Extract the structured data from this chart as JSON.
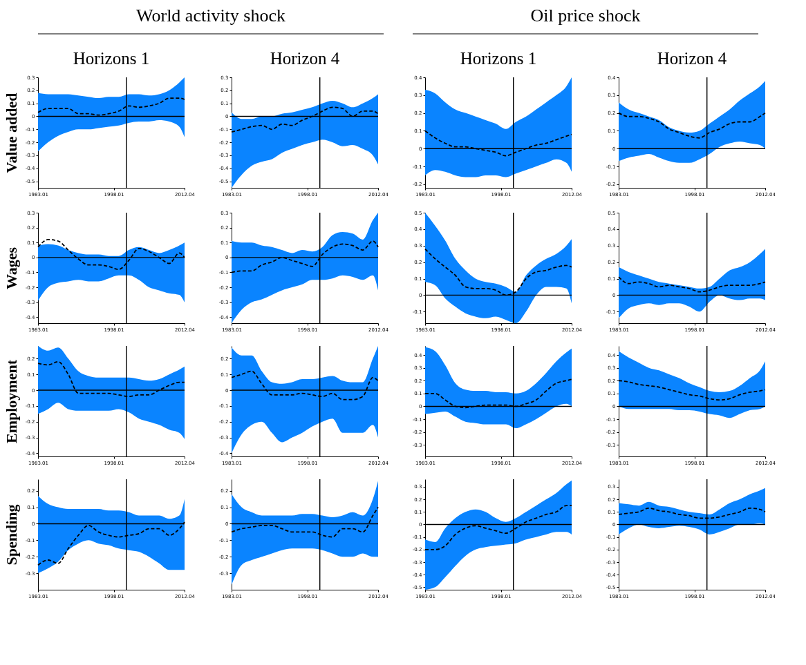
{
  "chart_data": [
    {
      "type": "line",
      "title": "Horizons 1",
      "ylabel": "Value added",
      "annotations": [
        "World activity shock"
      ],
      "x": [
        1983.01,
        1985,
        1987,
        1989,
        1991,
        1993,
        1995,
        1997,
        1999,
        2001,
        2003,
        2005,
        2007,
        2009,
        2011,
        2012.04
      ],
      "xlim": [
        1983.01,
        2012.04
      ],
      "xticks": [
        1983.01,
        1998.01,
        2012.04
      ],
      "ylim": [
        -0.55,
        0.3
      ],
      "yticks": [
        -0.5,
        -0.4,
        -0.3,
        -0.2,
        -0.1,
        0,
        0.1,
        0.2,
        0.3
      ],
      "ref_lines": [
        {
          "axis": "y",
          "value": 0
        },
        {
          "axis": "x",
          "value": 2000.5
        }
      ],
      "series": [
        {
          "color": "#000000",
          "line_style": "dashed",
          "values": [
            0.03,
            0.06,
            0.06,
            0.06,
            0.02,
            0.02,
            0.01,
            0.02,
            0.04,
            0.08,
            0.07,
            0.08,
            0.1,
            0.14,
            0.14,
            0.13
          ],
          "lower": [
            -0.27,
            -0.2,
            -0.15,
            -0.12,
            -0.1,
            -0.1,
            -0.09,
            -0.08,
            -0.07,
            -0.05,
            -0.04,
            -0.04,
            -0.03,
            -0.04,
            -0.08,
            -0.16
          ],
          "upper": [
            0.18,
            0.17,
            0.17,
            0.17,
            0.16,
            0.15,
            0.14,
            0.15,
            0.15,
            0.17,
            0.17,
            0.16,
            0.17,
            0.2,
            0.26,
            0.3
          ]
        }
      ]
    },
    {
      "type": "line",
      "title": "Horizon 4",
      "x": [
        1983.01,
        1985,
        1987,
        1989,
        1991,
        1993,
        1995,
        1997,
        1999,
        2001,
        2003,
        2005,
        2007,
        2009,
        2011,
        2012.04
      ],
      "xlim": [
        1983.01,
        2012.04
      ],
      "xticks": [
        1983.01,
        1998.01,
        2012.04
      ],
      "ylim": [
        -0.55,
        0.3
      ],
      "yticks": [
        -0.5,
        -0.4,
        -0.3,
        -0.2,
        -0.1,
        0,
        0.1,
        0.2,
        0.3
      ],
      "ref_lines": [
        {
          "axis": "y",
          "value": 0
        },
        {
          "axis": "x",
          "value": 2000.5
        }
      ],
      "series": [
        {
          "color": "#000000",
          "line_style": "dashed",
          "values": [
            -0.12,
            -0.1,
            -0.08,
            -0.07,
            -0.1,
            -0.06,
            -0.07,
            -0.03,
            0.0,
            0.04,
            0.07,
            0.06,
            0.0,
            0.04,
            0.04,
            0.02
          ],
          "lower": [
            -0.55,
            -0.45,
            -0.38,
            -0.35,
            -0.33,
            -0.28,
            -0.25,
            -0.22,
            -0.2,
            -0.18,
            -0.2,
            -0.23,
            -0.22,
            -0.25,
            -0.3,
            -0.37
          ],
          "upper": [
            0.03,
            -0.02,
            -0.02,
            0.0,
            0.0,
            0.02,
            0.03,
            0.05,
            0.07,
            0.1,
            0.12,
            0.1,
            0.07,
            0.1,
            0.14,
            0.17
          ]
        }
      ]
    },
    {
      "type": "line",
      "title": "Horizons 1",
      "annotations": [
        "Oil price shock"
      ],
      "x": [
        1983.01,
        1985,
        1987,
        1989,
        1991,
        1993,
        1995,
        1997,
        1999,
        2001,
        2003,
        2005,
        2007,
        2009,
        2011,
        2012.04
      ],
      "xlim": [
        1983.01,
        2012.04
      ],
      "xticks": [
        1983.01,
        1998.01,
        2012.04
      ],
      "ylim": [
        -0.22,
        0.4
      ],
      "yticks": [
        -0.2,
        -0.1,
        0,
        0.1,
        0.2,
        0.3,
        0.4
      ],
      "ref_lines": [
        {
          "axis": "y",
          "value": 0
        },
        {
          "axis": "x",
          "value": 2000.5
        }
      ],
      "series": [
        {
          "color": "#000000",
          "line_style": "dashed",
          "values": [
            0.1,
            0.06,
            0.03,
            0.01,
            0.01,
            0.0,
            -0.01,
            -0.02,
            -0.04,
            -0.02,
            0.0,
            0.02,
            0.03,
            0.05,
            0.07,
            0.08
          ],
          "lower": [
            -0.15,
            -0.12,
            -0.13,
            -0.15,
            -0.16,
            -0.16,
            -0.15,
            -0.15,
            -0.16,
            -0.14,
            -0.12,
            -0.1,
            -0.08,
            -0.06,
            -0.08,
            -0.13
          ],
          "upper": [
            0.33,
            0.31,
            0.26,
            0.22,
            0.2,
            0.18,
            0.16,
            0.14,
            0.11,
            0.15,
            0.18,
            0.22,
            0.26,
            0.3,
            0.35,
            0.4
          ]
        }
      ]
    },
    {
      "type": "line",
      "title": "Horizon 4",
      "x": [
        1983.01,
        1985,
        1987,
        1989,
        1991,
        1993,
        1995,
        1997,
        1999,
        2001,
        2003,
        2005,
        2007,
        2009,
        2011,
        2012.04
      ],
      "xlim": [
        1983.01,
        2012.04
      ],
      "xticks": [
        1983.01,
        1998.01,
        2012.04
      ],
      "ylim": [
        -0.22,
        0.4
      ],
      "yticks": [
        -0.2,
        -0.1,
        0,
        0.1,
        0.2,
        0.3,
        0.4
      ],
      "ref_lines": [
        {
          "axis": "y",
          "value": 0
        },
        {
          "axis": "x",
          "value": 2000.5
        }
      ],
      "series": [
        {
          "color": "#000000",
          "line_style": "dashed",
          "values": [
            0.2,
            0.18,
            0.18,
            0.17,
            0.15,
            0.11,
            0.09,
            0.07,
            0.06,
            0.09,
            0.11,
            0.14,
            0.15,
            0.15,
            0.18,
            0.2
          ],
          "lower": [
            -0.07,
            -0.05,
            -0.04,
            -0.03,
            -0.05,
            -0.07,
            -0.08,
            -0.08,
            -0.06,
            -0.03,
            0.01,
            0.03,
            0.04,
            0.03,
            0.02,
            0.0
          ],
          "upper": [
            0.26,
            0.22,
            0.2,
            0.18,
            0.16,
            0.12,
            0.1,
            0.09,
            0.1,
            0.14,
            0.18,
            0.22,
            0.27,
            0.31,
            0.35,
            0.38
          ]
        }
      ]
    },
    {
      "type": "line",
      "ylabel": "Wages",
      "x": [
        1983.01,
        1985,
        1987,
        1989,
        1991,
        1993,
        1995,
        1997,
        1999,
        2001,
        2003,
        2005,
        2007,
        2009,
        2011,
        2012.04
      ],
      "xlim": [
        1983.01,
        2012.04
      ],
      "xticks": [
        1983.01,
        1998.01,
        2012.04
      ],
      "ylim": [
        -0.44,
        0.3
      ],
      "yticks": [
        -0.4,
        -0.3,
        -0.2,
        -0.1,
        0,
        0.1,
        0.2,
        0.3
      ],
      "ref_lines": [
        {
          "axis": "y",
          "value": 0
        },
        {
          "axis": "x",
          "value": 2000.5
        }
      ],
      "series": [
        {
          "color": "#000000",
          "line_style": "dashed",
          "values": [
            0.07,
            0.12,
            0.11,
            0.05,
            -0.01,
            -0.05,
            -0.05,
            -0.06,
            -0.08,
            -0.02,
            0.06,
            0.04,
            0.0,
            -0.04,
            0.03,
            0.0
          ],
          "lower": [
            -0.29,
            -0.2,
            -0.17,
            -0.16,
            -0.15,
            -0.16,
            -0.16,
            -0.14,
            -0.12,
            -0.12,
            -0.15,
            -0.2,
            -0.22,
            -0.24,
            -0.25,
            -0.3
          ],
          "upper": [
            0.08,
            0.09,
            0.08,
            0.05,
            0.03,
            0.02,
            0.02,
            0.01,
            0.01,
            0.05,
            0.07,
            0.05,
            0.03,
            0.05,
            0.08,
            0.1
          ]
        }
      ]
    },
    {
      "type": "line",
      "x": [
        1983.01,
        1985,
        1987,
        1989,
        1991,
        1993,
        1995,
        1997,
        1999,
        2001,
        2003,
        2005,
        2007,
        2009,
        2011,
        2012.04
      ],
      "xlim": [
        1983.01,
        2012.04
      ],
      "xticks": [
        1983.01,
        1998.01,
        2012.04
      ],
      "ylim": [
        -0.44,
        0.3
      ],
      "yticks": [
        -0.4,
        -0.3,
        -0.2,
        -0.1,
        0,
        0.1,
        0.2,
        0.3
      ],
      "ref_lines": [
        {
          "axis": "y",
          "value": 0
        },
        {
          "axis": "x",
          "value": 2000.5
        }
      ],
      "series": [
        {
          "color": "#000000",
          "line_style": "dashed",
          "values": [
            -0.1,
            -0.09,
            -0.09,
            -0.05,
            -0.03,
            0.0,
            -0.02,
            -0.04,
            -0.06,
            0.02,
            0.07,
            0.09,
            0.08,
            0.05,
            0.11,
            0.07
          ],
          "lower": [
            -0.44,
            -0.35,
            -0.3,
            -0.28,
            -0.25,
            -0.22,
            -0.2,
            -0.18,
            -0.15,
            -0.15,
            -0.14,
            -0.12,
            -0.13,
            -0.15,
            -0.12,
            -0.22
          ],
          "upper": [
            0.11,
            0.1,
            0.1,
            0.08,
            0.07,
            0.05,
            0.03,
            0.05,
            0.04,
            0.07,
            0.15,
            0.17,
            0.16,
            0.12,
            0.25,
            0.3
          ]
        }
      ]
    },
    {
      "type": "line",
      "x": [
        1983.01,
        1985,
        1987,
        1989,
        1991,
        1993,
        1995,
        1997,
        1999,
        2001,
        2003,
        2005,
        2007,
        2009,
        2011,
        2012.04
      ],
      "xlim": [
        1983.01,
        2012.04
      ],
      "xticks": [
        1983.01,
        1998.01,
        2012.04
      ],
      "ylim": [
        -0.17,
        0.5
      ],
      "yticks": [
        -0.1,
        0,
        0.1,
        0.2,
        0.3,
        0.4,
        0.5
      ],
      "ref_lines": [
        {
          "axis": "y",
          "value": 0
        },
        {
          "axis": "x",
          "value": 2000.5
        }
      ],
      "series": [
        {
          "color": "#000000",
          "line_style": "dashed",
          "values": [
            0.28,
            0.22,
            0.17,
            0.12,
            0.05,
            0.04,
            0.04,
            0.03,
            0.0,
            0.02,
            0.1,
            0.14,
            0.15,
            0.17,
            0.18,
            0.17
          ],
          "lower": [
            0.08,
            0.06,
            -0.02,
            -0.07,
            -0.11,
            -0.13,
            -0.14,
            -0.13,
            -0.15,
            -0.17,
            -0.1,
            0.0,
            0.05,
            0.05,
            0.04,
            -0.05
          ],
          "upper": [
            0.5,
            0.42,
            0.33,
            0.22,
            0.15,
            0.1,
            0.08,
            0.07,
            0.05,
            0.02,
            0.12,
            0.18,
            0.22,
            0.25,
            0.3,
            0.34
          ]
        }
      ]
    },
    {
      "type": "line",
      "x": [
        1983.01,
        1985,
        1987,
        1989,
        1991,
        1993,
        1995,
        1997,
        1999,
        2001,
        2003,
        2005,
        2007,
        2009,
        2011,
        2012.04
      ],
      "xlim": [
        1983.01,
        2012.04
      ],
      "xticks": [
        1983.01,
        1998.01,
        2012.04
      ],
      "ylim": [
        -0.17,
        0.5
      ],
      "yticks": [
        -0.1,
        0,
        0.1,
        0.2,
        0.3,
        0.4,
        0.5
      ],
      "ref_lines": [
        {
          "axis": "y",
          "value": 0
        },
        {
          "axis": "x",
          "value": 2000.5
        }
      ],
      "series": [
        {
          "color": "#000000",
          "line_style": "dashed",
          "values": [
            0.11,
            0.07,
            0.08,
            0.07,
            0.05,
            0.06,
            0.05,
            0.04,
            0.02,
            0.03,
            0.05,
            0.06,
            0.06,
            0.06,
            0.07,
            0.08
          ],
          "lower": [
            -0.14,
            -0.08,
            -0.06,
            -0.05,
            -0.06,
            -0.05,
            -0.05,
            -0.07,
            -0.1,
            -0.04,
            0.0,
            -0.02,
            -0.03,
            -0.02,
            -0.02,
            -0.03
          ],
          "upper": [
            0.17,
            0.14,
            0.12,
            0.1,
            0.08,
            0.07,
            0.06,
            0.05,
            0.04,
            0.05,
            0.1,
            0.15,
            0.17,
            0.2,
            0.25,
            0.28
          ]
        }
      ]
    },
    {
      "type": "line",
      "ylabel": "Employment",
      "x": [
        1983.01,
        1985,
        1987,
        1989,
        1991,
        1993,
        1995,
        1997,
        1999,
        2001,
        2003,
        2005,
        2007,
        2009,
        2011,
        2012.04
      ],
      "xlim": [
        1983.01,
        2012.04
      ],
      "xticks": [
        1983.01,
        1998.01,
        2012.04
      ],
      "ylim": [
        -0.42,
        0.28
      ],
      "yticks": [
        -0.4,
        -0.3,
        -0.2,
        -0.1,
        0,
        0.1,
        0.2
      ],
      "ref_lines": [
        {
          "axis": "y",
          "value": 0
        },
        {
          "axis": "x",
          "value": 2000.5
        }
      ],
      "series": [
        {
          "color": "#000000",
          "line_style": "dashed",
          "values": [
            0.17,
            0.16,
            0.18,
            0.1,
            -0.02,
            -0.02,
            -0.02,
            -0.02,
            -0.03,
            -0.04,
            -0.03,
            -0.03,
            0.0,
            0.03,
            0.05,
            0.05
          ],
          "lower": [
            -0.15,
            -0.12,
            -0.08,
            -0.12,
            -0.13,
            -0.13,
            -0.13,
            -0.13,
            -0.12,
            -0.14,
            -0.18,
            -0.2,
            -0.22,
            -0.25,
            -0.27,
            -0.31
          ],
          "upper": [
            0.28,
            0.25,
            0.27,
            0.2,
            0.12,
            0.09,
            0.08,
            0.08,
            0.08,
            0.08,
            0.07,
            0.06,
            0.07,
            0.1,
            0.13,
            0.15
          ]
        }
      ]
    },
    {
      "type": "line",
      "x": [
        1983.01,
        1985,
        1987,
        1989,
        1991,
        1993,
        1995,
        1997,
        1999,
        2001,
        2003,
        2005,
        2007,
        2009,
        2011,
        2012.04
      ],
      "xlim": [
        1983.01,
        2012.04
      ],
      "xticks": [
        1983.01,
        1998.01,
        2012.04
      ],
      "ylim": [
        -0.42,
        0.28
      ],
      "yticks": [
        -0.4,
        -0.3,
        -0.2,
        -0.1,
        0,
        0.1,
        0.2
      ],
      "ref_lines": [
        {
          "axis": "y",
          "value": 0
        },
        {
          "axis": "x",
          "value": 2000.5
        }
      ],
      "series": [
        {
          "color": "#000000",
          "line_style": "dashed",
          "values": [
            0.08,
            0.1,
            0.12,
            0.04,
            -0.03,
            -0.03,
            -0.03,
            -0.02,
            -0.03,
            -0.04,
            -0.02,
            -0.06,
            -0.06,
            -0.04,
            0.08,
            0.06
          ],
          "lower": [
            -0.4,
            -0.28,
            -0.22,
            -0.2,
            -0.27,
            -0.33,
            -0.3,
            -0.27,
            -0.23,
            -0.2,
            -0.18,
            -0.27,
            -0.27,
            -0.27,
            -0.22,
            -0.3
          ],
          "upper": [
            0.27,
            0.22,
            0.22,
            0.12,
            0.05,
            0.04,
            0.05,
            0.07,
            0.07,
            0.08,
            0.09,
            0.06,
            0.05,
            0.05,
            0.2,
            0.28
          ]
        }
      ]
    },
    {
      "type": "line",
      "x": [
        1983.01,
        1985,
        1987,
        1989,
        1991,
        1993,
        1995,
        1997,
        1999,
        2001,
        2003,
        2005,
        2007,
        2009,
        2011,
        2012.04
      ],
      "xlim": [
        1983.01,
        2012.04
      ],
      "xticks": [
        1983.01,
        1998.01,
        2012.04
      ],
      "ylim": [
        -0.39,
        0.47
      ],
      "yticks": [
        -0.3,
        -0.2,
        -0.1,
        0,
        0.1,
        0.2,
        0.3,
        0.4
      ],
      "ref_lines": [
        {
          "axis": "y",
          "value": 0
        },
        {
          "axis": "x",
          "value": 2000.5
        }
      ],
      "series": [
        {
          "color": "#000000",
          "line_style": "dashed",
          "values": [
            0.1,
            0.1,
            0.05,
            0.0,
            -0.01,
            0.0,
            0.01,
            0.01,
            0.01,
            0.0,
            0.02,
            0.05,
            0.12,
            0.18,
            0.2,
            0.21
          ],
          "lower": [
            -0.06,
            -0.05,
            -0.04,
            -0.08,
            -0.12,
            -0.13,
            -0.14,
            -0.14,
            -0.14,
            -0.17,
            -0.14,
            -0.1,
            -0.05,
            0.0,
            0.02,
            0.0
          ],
          "upper": [
            0.46,
            0.43,
            0.32,
            0.18,
            0.13,
            0.12,
            0.12,
            0.11,
            0.11,
            0.1,
            0.12,
            0.18,
            0.26,
            0.35,
            0.42,
            0.45
          ]
        }
      ]
    },
    {
      "type": "line",
      "x": [
        1983.01,
        1985,
        1987,
        1989,
        1991,
        1993,
        1995,
        1997,
        1999,
        2001,
        2003,
        2005,
        2007,
        2009,
        2011,
        2012.04
      ],
      "xlim": [
        1983.01,
        2012.04
      ],
      "xticks": [
        1983.01,
        1998.01,
        2012.04
      ],
      "ylim": [
        -0.39,
        0.47
      ],
      "yticks": [
        -0.3,
        -0.2,
        -0.1,
        0,
        0.1,
        0.2,
        0.3,
        0.4
      ],
      "ref_lines": [
        {
          "axis": "y",
          "value": 0
        },
        {
          "axis": "x",
          "value": 2000.5
        }
      ],
      "series": [
        {
          "color": "#000000",
          "line_style": "dashed",
          "values": [
            0.2,
            0.19,
            0.17,
            0.16,
            0.15,
            0.13,
            0.11,
            0.09,
            0.08,
            0.06,
            0.05,
            0.06,
            0.09,
            0.11,
            0.12,
            0.13
          ],
          "lower": [
            0.0,
            -0.02,
            -0.02,
            -0.02,
            -0.02,
            -0.02,
            -0.03,
            -0.03,
            -0.04,
            -0.06,
            -0.07,
            -0.09,
            -0.06,
            -0.03,
            -0.02,
            0.0
          ],
          "upper": [
            0.43,
            0.38,
            0.34,
            0.3,
            0.28,
            0.25,
            0.22,
            0.18,
            0.15,
            0.12,
            0.11,
            0.12,
            0.16,
            0.22,
            0.28,
            0.35
          ]
        }
      ]
    },
    {
      "type": "line",
      "ylabel": "Spending",
      "x": [
        1983.01,
        1985,
        1987,
        1989,
        1991,
        1993,
        1995,
        1997,
        1999,
        2001,
        2003,
        2005,
        2007,
        2009,
        2011,
        2012.04
      ],
      "xlim": [
        1983.01,
        2012.04
      ],
      "xticks": [
        1983.01,
        1998.01,
        2012.04
      ],
      "ylim": [
        -0.4,
        0.27
      ],
      "yticks": [
        -0.3,
        -0.2,
        -0.1,
        0,
        0.1,
        0.2
      ],
      "ref_lines": [
        {
          "axis": "y",
          "value": 0
        },
        {
          "axis": "x",
          "value": 2000.5
        }
      ],
      "series": [
        {
          "color": "#000000",
          "line_style": "dashed",
          "values": [
            -0.25,
            -0.22,
            -0.24,
            -0.15,
            -0.07,
            -0.01,
            -0.05,
            -0.07,
            -0.08,
            -0.07,
            -0.06,
            -0.03,
            -0.03,
            -0.07,
            -0.03,
            0.01
          ],
          "lower": [
            -0.3,
            -0.27,
            -0.23,
            -0.16,
            -0.12,
            -0.1,
            -0.12,
            -0.13,
            -0.15,
            -0.16,
            -0.17,
            -0.2,
            -0.24,
            -0.28,
            -0.28,
            -0.28
          ],
          "upper": [
            0.17,
            0.12,
            0.1,
            0.09,
            0.09,
            0.09,
            0.09,
            0.08,
            0.08,
            0.07,
            0.05,
            0.05,
            0.05,
            0.03,
            0.05,
            0.15
          ]
        }
      ]
    },
    {
      "type": "line",
      "x": [
        1983.01,
        1985,
        1987,
        1989,
        1991,
        1993,
        1995,
        1997,
        1999,
        2001,
        2003,
        2005,
        2007,
        2009,
        2011,
        2012.04
      ],
      "xlim": [
        1983.01,
        2012.04
      ],
      "xticks": [
        1983.01,
        1998.01,
        2012.04
      ],
      "ylim": [
        -0.4,
        0.27
      ],
      "yticks": [
        -0.3,
        -0.2,
        -0.1,
        0,
        0.1,
        0.2
      ],
      "ref_lines": [
        {
          "axis": "y",
          "value": 0
        },
        {
          "axis": "x",
          "value": 2000.5
        }
      ],
      "series": [
        {
          "color": "#000000",
          "line_style": "dashed",
          "values": [
            -0.05,
            -0.03,
            -0.02,
            -0.01,
            -0.01,
            -0.03,
            -0.05,
            -0.05,
            -0.05,
            -0.07,
            -0.08,
            -0.03,
            -0.03,
            -0.05,
            0.05,
            0.1
          ],
          "lower": [
            -0.37,
            -0.25,
            -0.22,
            -0.2,
            -0.18,
            -0.16,
            -0.15,
            -0.15,
            -0.15,
            -0.16,
            -0.18,
            -0.2,
            -0.2,
            -0.18,
            -0.2,
            -0.2
          ],
          "upper": [
            0.18,
            0.1,
            0.07,
            0.05,
            0.05,
            0.05,
            0.05,
            0.06,
            0.06,
            0.05,
            0.04,
            0.05,
            0.07,
            0.05,
            0.15,
            0.26
          ]
        }
      ]
    },
    {
      "type": "line",
      "x": [
        1983.01,
        1985,
        1987,
        1989,
        1991,
        1993,
        1995,
        1997,
        1999,
        2001,
        2003,
        2005,
        2007,
        2009,
        2011,
        2012.04
      ],
      "xlim": [
        1983.01,
        2012.04
      ],
      "xticks": [
        1983.01,
        1998.01,
        2012.04
      ],
      "ylim": [
        -0.52,
        0.36
      ],
      "yticks": [
        -0.5,
        -0.4,
        -0.3,
        -0.2,
        -0.1,
        0,
        0.1,
        0.2,
        0.3
      ],
      "ref_lines": [
        {
          "axis": "y",
          "value": 0
        },
        {
          "axis": "x",
          "value": 2000.5
        }
      ],
      "series": [
        {
          "color": "#000000",
          "line_style": "dashed",
          "values": [
            -0.2,
            -0.2,
            -0.17,
            -0.08,
            -0.03,
            -0.01,
            -0.03,
            -0.05,
            -0.07,
            -0.03,
            0.02,
            0.05,
            0.08,
            0.1,
            0.15,
            0.15
          ],
          "lower": [
            -0.52,
            -0.5,
            -0.42,
            -0.33,
            -0.25,
            -0.2,
            -0.18,
            -0.17,
            -0.16,
            -0.15,
            -0.12,
            -0.1,
            -0.08,
            -0.06,
            -0.06,
            -0.08
          ],
          "upper": [
            -0.12,
            -0.14,
            -0.03,
            0.05,
            0.1,
            0.12,
            0.1,
            0.05,
            0.02,
            0.05,
            0.1,
            0.15,
            0.2,
            0.25,
            0.32,
            0.35
          ]
        }
      ]
    },
    {
      "type": "line",
      "x": [
        1983.01,
        1985,
        1987,
        1989,
        1991,
        1993,
        1995,
        1997,
        1999,
        2001,
        2003,
        2005,
        2007,
        2009,
        2011,
        2012.04
      ],
      "xlim": [
        1983.01,
        2012.04
      ],
      "xticks": [
        1983.01,
        1998.01,
        2012.04
      ],
      "ylim": [
        -0.52,
        0.36
      ],
      "yticks": [
        -0.5,
        -0.4,
        -0.3,
        -0.2,
        -0.1,
        0,
        0.1,
        0.2,
        0.3
      ],
      "ref_lines": [
        {
          "axis": "y",
          "value": 0
        },
        {
          "axis": "x",
          "value": 2000.5
        }
      ],
      "series": [
        {
          "color": "#000000",
          "line_style": "dashed",
          "values": [
            0.08,
            0.09,
            0.1,
            0.13,
            0.11,
            0.1,
            0.08,
            0.07,
            0.05,
            0.05,
            0.06,
            0.08,
            0.1,
            0.13,
            0.12,
            0.1
          ],
          "lower": [
            -0.08,
            -0.03,
            0.0,
            -0.02,
            -0.03,
            -0.02,
            -0.01,
            -0.02,
            -0.04,
            -0.08,
            -0.06,
            -0.03,
            0.0,
            0.0,
            0.01,
            0.0
          ],
          "upper": [
            0.17,
            0.16,
            0.15,
            0.18,
            0.15,
            0.14,
            0.12,
            0.1,
            0.09,
            0.08,
            0.12,
            0.17,
            0.2,
            0.24,
            0.27,
            0.29
          ]
        }
      ]
    }
  ]
}
